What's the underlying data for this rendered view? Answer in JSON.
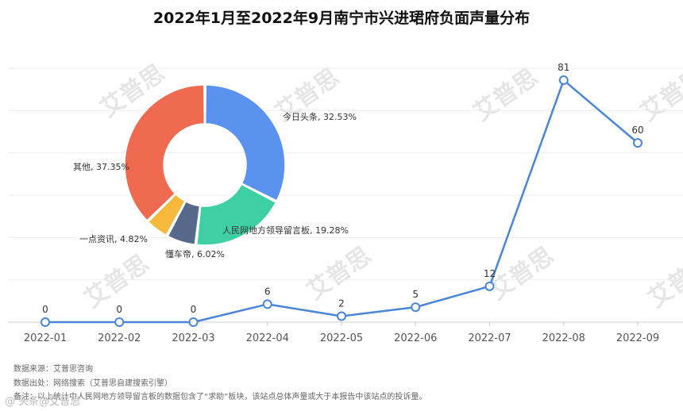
{
  "watermark_text": "艾普思",
  "colors": {
    "line": "#4a86d8",
    "grid": "#eeeeee",
    "axis": "#cccccc"
  },
  "chart_data": [
    {
      "type": "line",
      "title": "2022年1月至2022年9月南宁市兴进珺府负面声量分布",
      "categories": [
        "2022-01",
        "2022-02",
        "2022-03",
        "2022-04",
        "2022-05",
        "2022-06",
        "2022-07",
        "2022-08",
        "2022-09"
      ],
      "values": [
        0,
        0,
        0,
        6,
        2,
        5,
        12,
        81,
        60
      ],
      "ylim": [
        0,
        85
      ],
      "grid": true,
      "data_labels": true
    },
    {
      "type": "pie",
      "slices": [
        {
          "label": "今日头条",
          "value": 32.53,
          "display": "今日头条, 32.53%",
          "color": "#5b92f0"
        },
        {
          "label": "人民网地方领导留言板",
          "value": 19.28,
          "display": "人民网地方领导留言板, 19.28%",
          "color": "#3ed0a4"
        },
        {
          "label": "懂车帝",
          "value": 6.02,
          "display": "懂车帝, 6.02%",
          "color": "#56698b"
        },
        {
          "label": "一点资讯",
          "value": 4.82,
          "display": "一点资讯, 4.82%",
          "color": "#f6b93b"
        },
        {
          "label": "其他",
          "value": 37.35,
          "display": "其他, 37.35%",
          "color": "#ef6a50"
        }
      ]
    }
  ],
  "notes": {
    "source": "数据来源：艾普思咨询",
    "origin": "数据出处：网络搜索（艾普思自建搜索引擎）",
    "remark": "备注：以上统计中人民网地方领导留言板的数据包含了“求助”板块，该站点总体声量或大于本报告中该站点的投诉量。"
  },
  "footer_logo": "@ 头条@艾普思"
}
